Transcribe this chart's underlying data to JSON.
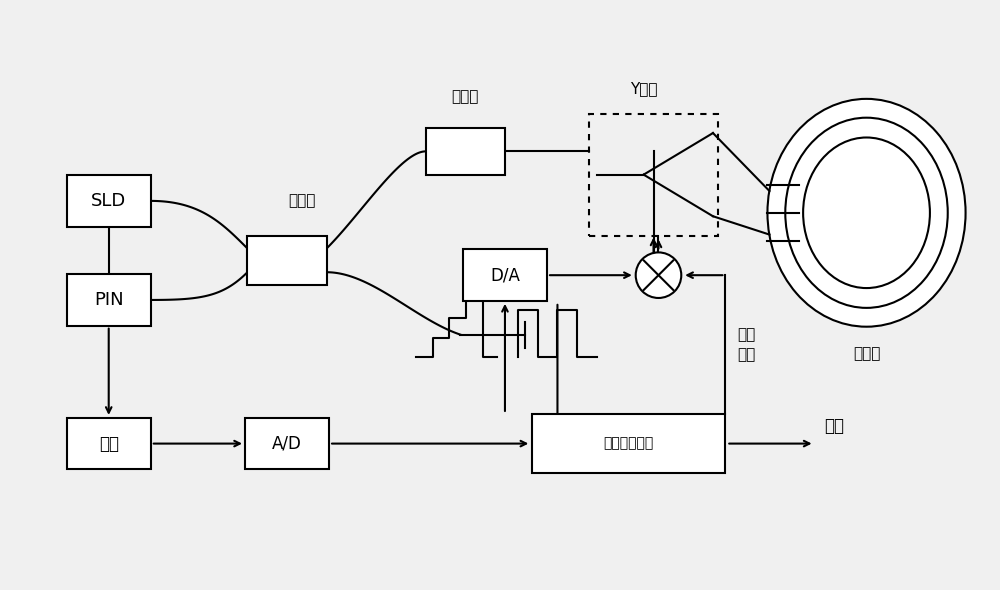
{
  "bg_color": "#f0f0f0",
  "line_color": "#000000",
  "box_color": "#ffffff",
  "labels": {
    "SLD": "SLD",
    "PIN": "PIN",
    "coupler_label": "耦合器",
    "polarizer_label": "起偏器",
    "Y_waveguide_label": "Y波导",
    "fiber_ring_label": "光纤环",
    "DA": "D/A",
    "AD": "A/D",
    "preamplifier": "前放",
    "signal_processor": "信号处理单元",
    "external_signal": "外加\n信号",
    "output": "输出"
  }
}
